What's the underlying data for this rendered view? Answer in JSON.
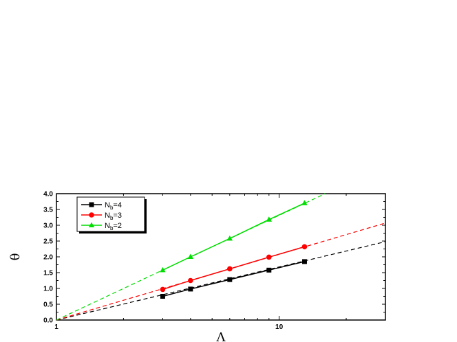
{
  "chart_data": {
    "type": "line",
    "xscale": "log",
    "xlabel": "Λ",
    "ylabel": "θ",
    "xlim": [
      1,
      30
    ],
    "ylim": [
      0,
      4.0
    ],
    "xticks": [
      "1",
      "10"
    ],
    "yticks": [
      "0.0",
      "0.5",
      "1.0",
      "1.5",
      "2.0",
      "2.5",
      "3.0",
      "3.5",
      "4.0"
    ],
    "legend_position": "top-left",
    "series": [
      {
        "name": "N_b=4",
        "label_main": "N",
        "label_sub": "b",
        "label_rest": "=4",
        "color": "#000000",
        "marker": "square",
        "x": [
          3,
          4,
          6,
          9,
          13
        ],
        "y": [
          0.75,
          0.98,
          1.28,
          1.58,
          1.85
        ],
        "fit_x": [
          1,
          30
        ],
        "fit_y": [
          0,
          2.48
        ]
      },
      {
        "name": "N_b=3",
        "label_main": "N",
        "label_sub": "b",
        "label_rest": "=3",
        "color": "#ff0000",
        "marker": "circle",
        "x": [
          3,
          4,
          6,
          9,
          13
        ],
        "y": [
          0.97,
          1.25,
          1.62,
          1.99,
          2.32
        ],
        "fit_x": [
          1,
          30
        ],
        "fit_y": [
          0,
          3.07
        ]
      },
      {
        "name": "N_b=2",
        "label_main": "N",
        "label_sub": "b",
        "label_rest": "=2",
        "color": "#00dd00",
        "marker": "triangle",
        "x": [
          3,
          4,
          6,
          9,
          13
        ],
        "y": [
          1.58,
          2.0,
          2.58,
          3.18,
          3.7
        ],
        "fit_x": [
          1,
          16.1
        ],
        "fit_y": [
          0,
          4.0
        ]
      }
    ]
  }
}
